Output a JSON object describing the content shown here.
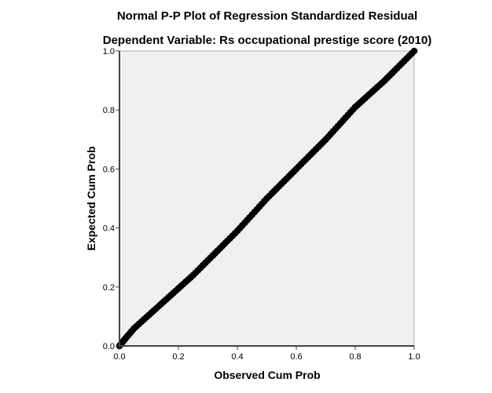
{
  "chart_data": {
    "type": "scatter",
    "title": "Normal P-P Plot of Regression Standardized Residual",
    "subtitle": "Dependent Variable: Rs occupational prestige score (2010)",
    "xlabel": "Observed Cum Prob",
    "ylabel": "Expected Cum Prob",
    "xlim": [
      0,
      1
    ],
    "ylim": [
      0,
      1
    ],
    "xticks": [
      "0.0",
      "0.2",
      "0.4",
      "0.6",
      "0.8",
      "1.0"
    ],
    "yticks": [
      "0.0",
      "0.2",
      "0.4",
      "0.6",
      "0.8",
      "1.0"
    ],
    "grid": false,
    "reference_line": [
      [
        0,
        0
      ],
      [
        1,
        1
      ]
    ],
    "points": [
      [
        0,
        0
      ],
      [
        0.02,
        0.025
      ],
      [
        0.05,
        0.06
      ],
      [
        0.1,
        0.105
      ],
      [
        0.15,
        0.15
      ],
      [
        0.2,
        0.195
      ],
      [
        0.25,
        0.24
      ],
      [
        0.3,
        0.29
      ],
      [
        0.35,
        0.34
      ],
      [
        0.4,
        0.39
      ],
      [
        0.45,
        0.445
      ],
      [
        0.5,
        0.5
      ],
      [
        0.55,
        0.55
      ],
      [
        0.6,
        0.6
      ],
      [
        0.65,
        0.65
      ],
      [
        0.7,
        0.7
      ],
      [
        0.75,
        0.755
      ],
      [
        0.8,
        0.81
      ],
      [
        0.85,
        0.855
      ],
      [
        0.9,
        0.9
      ],
      [
        0.95,
        0.95
      ],
      [
        1,
        1
      ]
    ],
    "colors": {
      "plot_background": "#f0f0f0",
      "points": "#000000"
    }
  }
}
